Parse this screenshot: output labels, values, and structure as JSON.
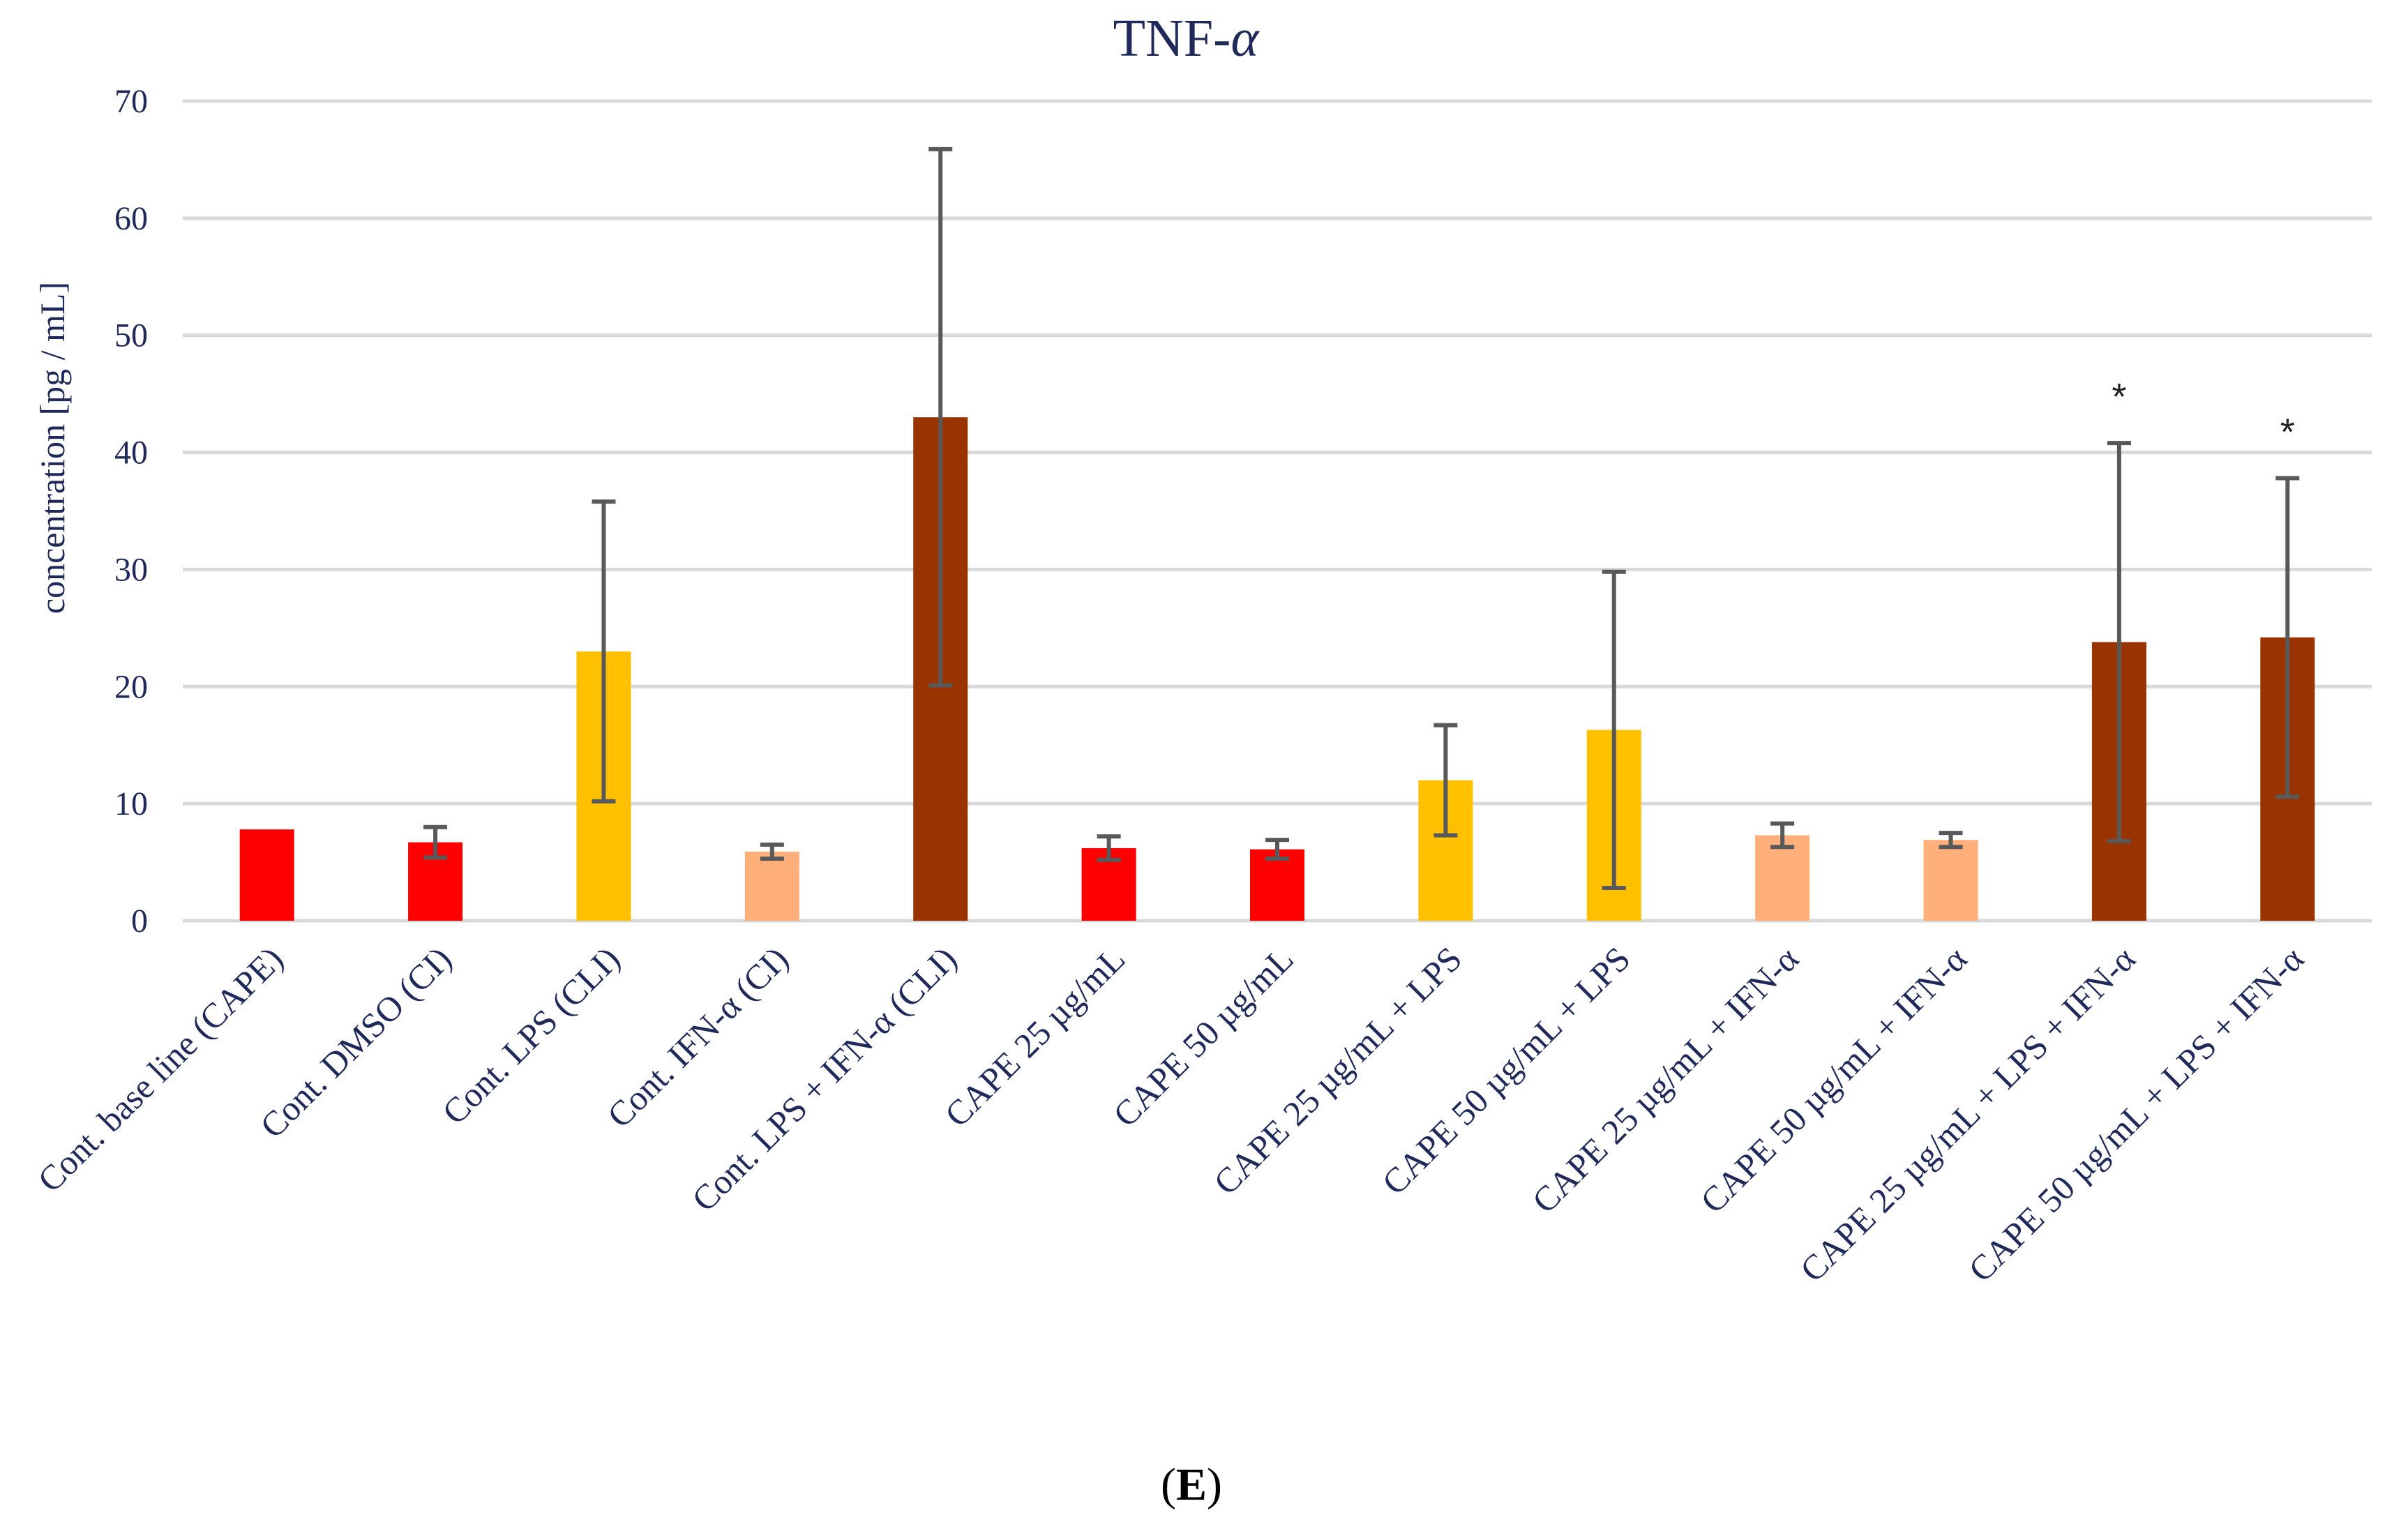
{
  "chart_data": {
    "type": "bar",
    "title": "TNF-α",
    "title_base": "TNF-",
    "title_italic": "α",
    "ylabel": "concentration [pg / mL]",
    "xlabel": "",
    "ylim": [
      0,
      70
    ],
    "yticks": [
      0,
      10,
      20,
      30,
      40,
      50,
      60,
      70
    ],
    "grid": true,
    "panel_label": "(E)",
    "panel_letter": "E",
    "categories": [
      "Cont. base line (CAPE)",
      "Cont. DMSO (CI)",
      "Cont. LPS (CLI)",
      "Cont. IFN-α (CI)",
      "Cont. LPS + IFN-α (CLI)",
      "CAPE 25 µg/mL",
      "CAPE 50 µg/mL",
      "CAPE 25 µg/mL + LPS",
      "CAPE 50 µg/mL + LPS",
      "CAPE 25 µg/mL + IFN-α",
      "CAPE 50 µg/mL + IFN-α",
      "CAPE 25 µg/mL + LPS + IFN-α",
      "CAPE 50 µg/mL + LPS + IFN-α"
    ],
    "values": [
      7.8,
      6.7,
      23.0,
      5.9,
      43.0,
      6.2,
      6.1,
      12.0,
      16.3,
      7.3,
      6.9,
      23.8,
      24.2
    ],
    "errors": [
      0,
      1.3,
      12.8,
      0.6,
      22.9,
      1.0,
      0.8,
      4.7,
      13.5,
      1.0,
      0.6,
      17.0,
      13.6
    ],
    "colors": [
      "#ff0000",
      "#ff0000",
      "#ffc000",
      "#ffb07a",
      "#993300",
      "#ff0000",
      "#ff0000",
      "#ffc000",
      "#ffc000",
      "#ffb07a",
      "#ffb07a",
      "#993300",
      "#993300"
    ],
    "annotations": [
      "",
      "",
      "",
      "",
      "",
      "",
      "",
      "",
      "",
      "",
      "",
      "*",
      "*"
    ]
  }
}
